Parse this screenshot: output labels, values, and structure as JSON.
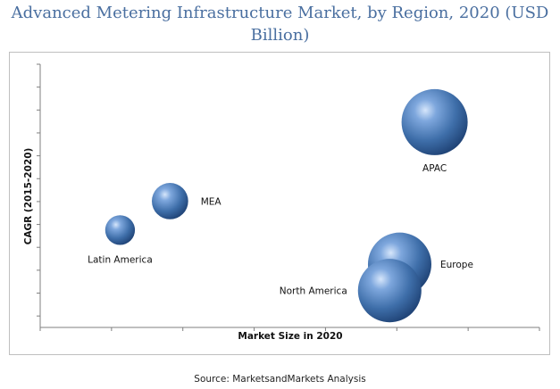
{
  "title": "Advanced Metering Infrastructure Market, by Region, 2020 (USD Billion)",
  "source": "Source: MarketsandMarkets Analysis",
  "chart_data": {
    "type": "scatter",
    "title": "Advanced Metering Infrastructure Market, by Region, 2020 (USD Billion)",
    "xlabel": "Market Size in 2020",
    "ylabel": "CAGR (2015-2020)",
    "x_ticks_shown": false,
    "y_ticks_shown": false,
    "grid": false,
    "bubble_color": "#4a7ab8",
    "points": [
      {
        "label": "APAC",
        "x": 0.79,
        "y": 0.78,
        "size": 1.0
      },
      {
        "label": "MEA",
        "x": 0.26,
        "y": 0.48,
        "size": 0.55
      },
      {
        "label": "Latin America",
        "x": 0.16,
        "y": 0.37,
        "size": 0.45
      },
      {
        "label": "Europe",
        "x": 0.72,
        "y": 0.24,
        "size": 0.96
      },
      {
        "label": "North America",
        "x": 0.7,
        "y": 0.14,
        "size": 0.96
      }
    ]
  }
}
